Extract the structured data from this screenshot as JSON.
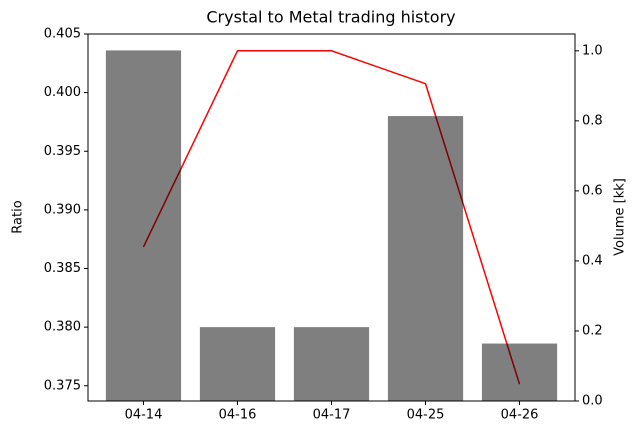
{
  "chart_data": {
    "type": "bar",
    "title": "Crystal to Metal trading history",
    "ylabel": "Ratio",
    "y2label": "Volume [kk]",
    "categories": [
      "04-14",
      "04-16",
      "04-17",
      "04-25",
      "04-26"
    ],
    "series": [
      {
        "type": "line",
        "color": "#ff0000",
        "axis": "y2",
        "values": [
          0.44,
          1.0,
          1.0,
          0.906,
          0.048
        ]
      },
      {
        "type": "bar",
        "color": "#000000",
        "opacity": 0.5,
        "values": [
          0.4036,
          0.38,
          0.38,
          0.398,
          0.3786
        ]
      }
    ],
    "ylim": [
      0.3737,
      0.405
    ],
    "yticks": [
      0.375,
      {
        "value": 0.38,
        "label": "0.380"
      },
      0.385,
      {
        "value": 0.39,
        "label": "0.390"
      },
      0.395,
      {
        "value": 0.4,
        "label": "0.400"
      },
      0.405
    ],
    "y2lim": [
      0,
      1.048
    ],
    "y2ticks": [
      {
        "value": 0,
        "label": "0.0"
      },
      {
        "value": 0.2,
        "label": "0.2"
      },
      {
        "value": 0.4,
        "label": "0.4"
      },
      {
        "value": 0.6,
        "label": "0.6"
      },
      {
        "value": 0.8,
        "label": "0.8"
      },
      {
        "value": 1,
        "label": "1.0"
      }
    ],
    "grid": false
  }
}
